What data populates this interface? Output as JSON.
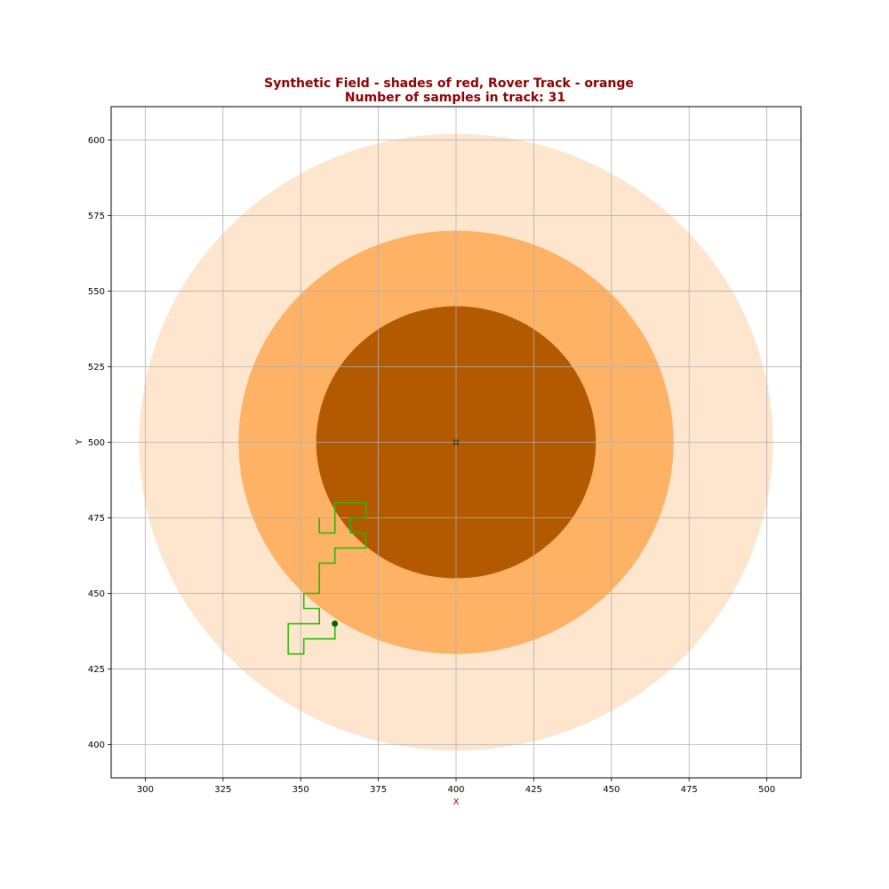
{
  "chart_data": {
    "type": "scatter",
    "title_line1": "Synthetic Field - shades of red,   Rover Track - orange",
    "title_line2": "Number of samples in track:  31",
    "xlabel": "X",
    "ylabel": "Y",
    "xlim": [
      289,
      511
    ],
    "ylim": [
      389,
      611
    ],
    "x_ticks": [
      300,
      325,
      350,
      375,
      400,
      425,
      450,
      475,
      500
    ],
    "y_ticks": [
      400,
      425,
      450,
      475,
      500,
      525,
      550,
      575,
      600
    ],
    "grid": true,
    "field": {
      "center": [
        400,
        500
      ],
      "rings": [
        {
          "radius": 102,
          "color": "#fee6ce"
        },
        {
          "radius": 70,
          "color": "#fdb266"
        },
        {
          "radius": 45,
          "color": "#b35900"
        }
      ],
      "center_marker_color": "#5a2d00"
    },
    "track": {
      "color": "#22bb00",
      "start_marker_color": "#006400",
      "points": [
        [
          361,
          440
        ],
        [
          361,
          435
        ],
        [
          351,
          435
        ],
        [
          351,
          430
        ],
        [
          346,
          430
        ],
        [
          346,
          440
        ],
        [
          356,
          440
        ],
        [
          356,
          445
        ],
        [
          351,
          445
        ],
        [
          351,
          450
        ],
        [
          356,
          450
        ],
        [
          356,
          460
        ],
        [
          361,
          460
        ],
        [
          361,
          465
        ],
        [
          371,
          465
        ],
        [
          371,
          470
        ],
        [
          366,
          470
        ],
        [
          366,
          475
        ],
        [
          371,
          475
        ],
        [
          371,
          480
        ],
        [
          361,
          480
        ],
        [
          361,
          470
        ],
        [
          356,
          470
        ],
        [
          356,
          475
        ]
      ]
    },
    "title_color": "#8b0000",
    "xlabel_color": "#8b0000"
  }
}
